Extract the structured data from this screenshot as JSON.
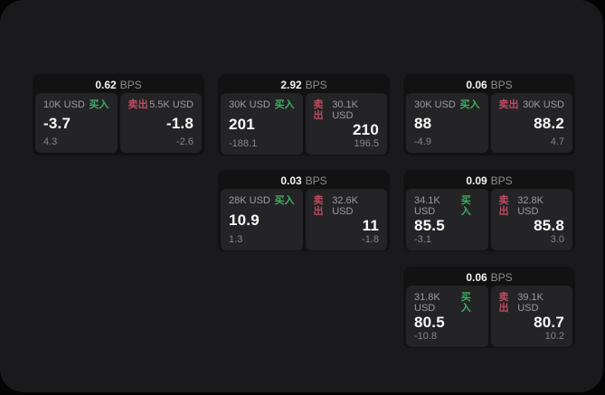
{
  "labels": {
    "bps_unit": "BPS",
    "buy": "买入",
    "sell": "卖出"
  },
  "colors": {
    "outer_background": "#040404",
    "panel_background": "#1a1a1c",
    "card_background": "#121213",
    "tile_background": "#242426",
    "buy_accent": "#3fae62",
    "sell_accent": "#c04a60",
    "text_primary": "#fafafa",
    "text_secondary": "#9c9c9f",
    "text_muted": "#86868a"
  },
  "cards": [
    {
      "bps": "0.62",
      "buy": {
        "amount": "10K USD",
        "price": "-3.7",
        "delta": "4.3"
      },
      "sell": {
        "amount": "5.5K USD",
        "price": "-1.8",
        "delta": "-2.6"
      }
    },
    {
      "bps": "2.92",
      "buy": {
        "amount": "30K USD",
        "price": "201",
        "delta": "-188.1"
      },
      "sell": {
        "amount": "30.1K USD",
        "price": "210",
        "delta": "196.5"
      }
    },
    {
      "bps": "0.06",
      "buy": {
        "amount": "30K USD",
        "price": "88",
        "delta": "-4.9"
      },
      "sell": {
        "amount": "30K USD",
        "price": "88.2",
        "delta": "4.7"
      }
    },
    {
      "bps": "0.03",
      "buy": {
        "amount": "28K USD",
        "price": "10.9",
        "delta": "1.3"
      },
      "sell": {
        "amount": "32.6K USD",
        "price": "11",
        "delta": "-1.8"
      }
    },
    {
      "bps": "0.09",
      "buy": {
        "amount": "34.1K USD",
        "price": "85.5",
        "delta": "-3.1"
      },
      "sell": {
        "amount": "32.8K USD",
        "price": "85.8",
        "delta": "3.0"
      }
    },
    {
      "bps": "0.06",
      "buy": {
        "amount": "31.8K USD",
        "price": "80.5",
        "delta": "-10.8"
      },
      "sell": {
        "amount": "39.1K USD",
        "price": "80.7",
        "delta": "10.2"
      }
    }
  ]
}
